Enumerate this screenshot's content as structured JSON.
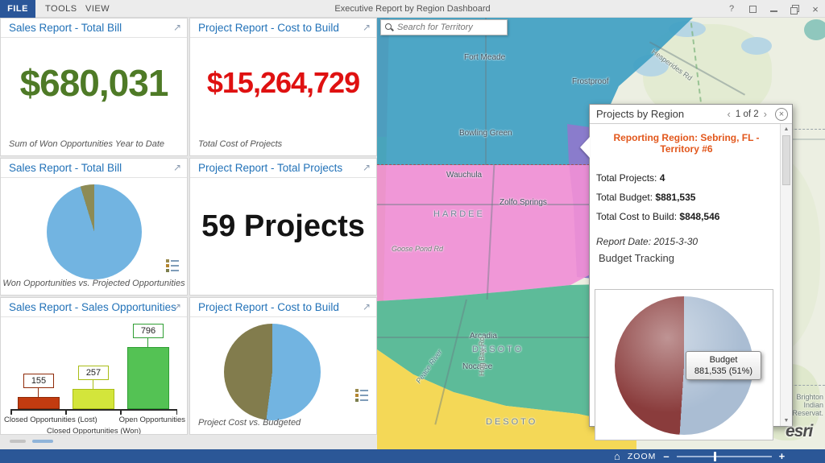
{
  "titlebar": {
    "file_tab": "FILE",
    "tools_tab": "TOOLS",
    "view_tab": "VIEW",
    "title": "Executive Report by Region Dashboard",
    "help": "?"
  },
  "tiles": [
    {
      "title": "Sales Report - Total Bill",
      "value": "$680,031",
      "caption": "Sum of Won Opportunities Year to Date"
    },
    {
      "title": "Project Report - Cost to Build",
      "value": "$15,264,729",
      "caption": "Total Cost of Projects"
    },
    {
      "title": "Sales Report - Total Bill",
      "caption": "Won Opportunities vs. Projected Opportunities"
    },
    {
      "title": "Project Report - Total Projects",
      "value": "59 Projects"
    },
    {
      "title": "Sales Report - Sales Opportunities"
    },
    {
      "title": "Project Report - Cost to Build",
      "caption": "Project Cost vs. Budgeted"
    }
  ],
  "chart_data": [
    {
      "type": "pie",
      "title": "Won Opportunities vs. Projected Opportunities",
      "start_deg": -17,
      "slices": [
        {
          "label": "projected",
          "value": 4.7,
          "color": "#8d8b55"
        },
        {
          "label": "won",
          "value": 95.3,
          "color": "#72b4e1"
        }
      ]
    },
    {
      "type": "bar",
      "title": "Sales Report - Sales Opportunities",
      "categories": [
        "Closed Opportunities (Lost)",
        "Closed Opportunities (Won)",
        "Open Opportunities"
      ],
      "values": [
        155,
        257,
        796
      ],
      "colors": [
        "#c23b10",
        "#d3e53b",
        "#54c254"
      ],
      "border_colors": [
        "#8f2a08",
        "#a9bd17",
        "#2f9e33"
      ],
      "ylim": [
        0,
        830
      ]
    },
    {
      "type": "pie",
      "title": "Project Cost vs. Budgeted",
      "start_deg": 0,
      "slices": [
        {
          "label": "budgeted",
          "value": 52,
          "color": "#72b4e1"
        },
        {
          "label": "cost",
          "value": 48,
          "color": "#827c4d"
        }
      ]
    },
    {
      "type": "pie",
      "title": "Budget Tracking",
      "start_deg": 0,
      "slices": [
        {
          "label": "Budget",
          "value": 51,
          "color": "#aabdd3"
        },
        {
          "label": "Cost",
          "value": 49,
          "color": "#8a3c3c"
        }
      ],
      "tooltip": {
        "line1": "Budget",
        "line2": "881,535 (51%)"
      }
    }
  ],
  "map": {
    "search_placeholder": "Search for Territory",
    "labels": {
      "fort_meade": "Fort Meade",
      "frostproof": "Frostproof",
      "bowling_green": "Bowling Green",
      "wauchula": "Wauchula",
      "zolfo_springs": "Zolfo Springs",
      "hardee": "HARDEE",
      "goose_pond": "Goose Pond Rd",
      "arcadia": "Arcadia",
      "desoto_upper": "DESOTO",
      "nocatee": "Nocatee",
      "peace_river": "Peace River",
      "hog_bay": "Hog Bay Rd",
      "desoto_lower": "DESOTO",
      "hesperides": "Hesperides Rd",
      "brighton": "Brighton Indian Reservat.",
      "esri": "esri"
    }
  },
  "popup": {
    "title": "Projects by Region",
    "prev": "‹",
    "page": "1 of 2",
    "next": "›",
    "close": "×",
    "region_title": "Reporting Region: Sebring, FL - Territory #6",
    "stats": [
      {
        "label": "Total Projects: ",
        "value": "4"
      },
      {
        "label": "Total Budget: ",
        "value": "$881,535"
      },
      {
        "label": "Total Cost to Build: ",
        "value": "$848,546"
      }
    ],
    "report_date": "Report Date: 2015-3-30",
    "section_title": "Budget Tracking"
  },
  "zoombar": {
    "label": "ZOOM",
    "minus": "–",
    "plus": "+"
  }
}
